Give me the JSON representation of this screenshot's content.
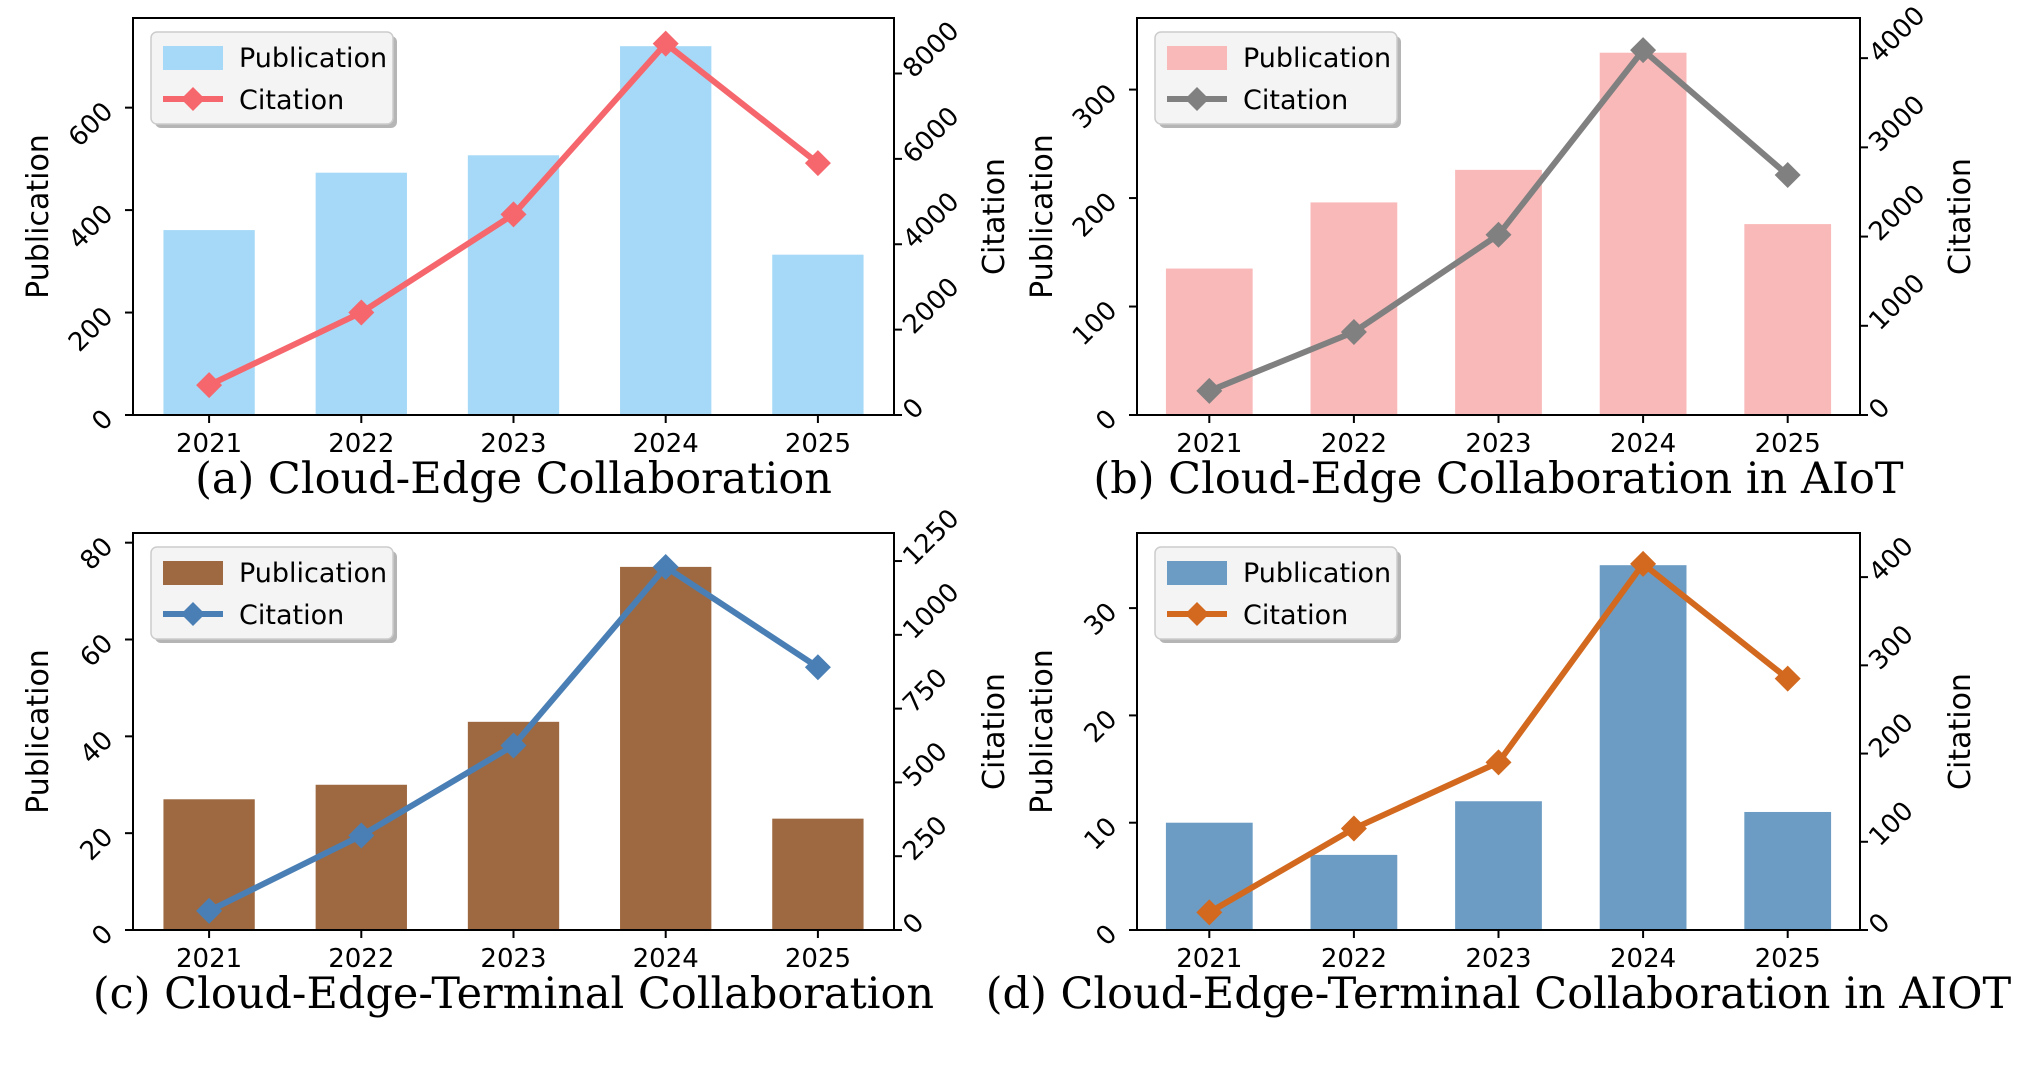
{
  "chart_data": [
    {
      "type": "bar+line",
      "caption": "(a) Cloud-Edge Collaboration",
      "categories": [
        "2021",
        "2022",
        "2023",
        "2024",
        "2025"
      ],
      "ylabel_left": "Publication",
      "ylabel_right": "Citation",
      "ylim_left": [
        0,
        775
      ],
      "ylim_right": [
        0,
        9300
      ],
      "yticks_left": [
        0,
        200,
        400,
        600
      ],
      "yticks_right": [
        0,
        2000,
        4000,
        6000,
        8000
      ],
      "series": [
        {
          "name": "Publication",
          "kind": "bar",
          "axis": "left",
          "color": "#a6d9f7",
          "values": [
            361,
            473,
            507,
            720,
            313
          ]
        },
        {
          "name": "Citation",
          "kind": "line",
          "axis": "right",
          "color": "#f5676d",
          "values": [
            700,
            2400,
            4700,
            8700,
            5900
          ]
        }
      ],
      "legend": "top-left"
    },
    {
      "type": "bar+line",
      "caption": "(b) Cloud-Edge Collaboration in AIoT",
      "categories": [
        "2021",
        "2022",
        "2023",
        "2024",
        "2025"
      ],
      "ylabel_left": "Publication",
      "ylabel_right": "Citation",
      "ylim_left": [
        0,
        366
      ],
      "ylim_right": [
        0,
        4450
      ],
      "yticks_left": [
        0,
        100,
        200,
        300
      ],
      "yticks_right": [
        0,
        1000,
        2000,
        3000,
        4000
      ],
      "series": [
        {
          "name": "Publication",
          "kind": "bar",
          "axis": "left",
          "color": "#f9b9b9",
          "values": [
            135,
            196,
            226,
            334,
            176
          ]
        },
        {
          "name": "Citation",
          "kind": "line",
          "axis": "right",
          "color": "#808080",
          "values": [
            270,
            930,
            2020,
            4090,
            2690
          ]
        }
      ],
      "legend": "top-left"
    },
    {
      "type": "bar+line",
      "caption": "(c) Cloud-Edge-Terminal Collaboration",
      "categories": [
        "2021",
        "2022",
        "2023",
        "2024",
        "2025"
      ],
      "ylabel_left": "Publication",
      "ylabel_right": "Citation",
      "ylim_left": [
        0,
        82
      ],
      "ylim_right": [
        0,
        1345
      ],
      "yticks_left": [
        0,
        20,
        40,
        60,
        80
      ],
      "yticks_right": [
        0,
        250,
        500,
        750,
        1000,
        1250
      ],
      "series": [
        {
          "name": "Publication",
          "kind": "bar",
          "axis": "left",
          "color": "#9e6941",
          "values": [
            27,
            30,
            43,
            75,
            23
          ]
        },
        {
          "name": "Citation",
          "kind": "line",
          "axis": "right",
          "color": "#4a7fb5",
          "values": [
            65,
            320,
            625,
            1230,
            890
          ]
        }
      ],
      "legend": "top-left"
    },
    {
      "type": "bar+line",
      "caption": "(d) Cloud-Edge-Terminal Collaboration in AIOT",
      "categories": [
        "2021",
        "2022",
        "2023",
        "2024",
        "2025"
      ],
      "ylabel_left": "Publication",
      "ylabel_right": "Citation",
      "ylim_left": [
        0,
        37
      ],
      "ylim_right": [
        0,
        450
      ],
      "yticks_left": [
        0,
        10,
        20,
        30
      ],
      "yticks_right": [
        0,
        100,
        200,
        300,
        400
      ],
      "series": [
        {
          "name": "Publication",
          "kind": "bar",
          "axis": "left",
          "color": "#6c9cc4",
          "values": [
            10,
            7,
            12,
            34,
            11
          ]
        },
        {
          "name": "Citation",
          "kind": "line",
          "axis": "right",
          "color": "#d2691e",
          "values": [
            20,
            115,
            190,
            415,
            285
          ]
        }
      ],
      "legend": "top-left"
    }
  ]
}
